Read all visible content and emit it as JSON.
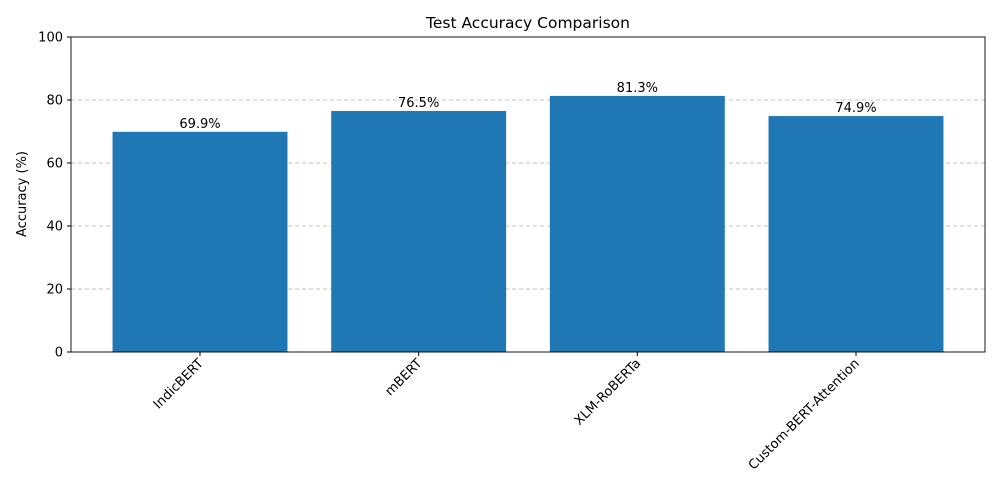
{
  "chart_data": {
    "type": "bar",
    "title": "Test Accuracy Comparison",
    "y_label": "Accuracy (%)",
    "categories": [
      "IndicBERT",
      "mBERT",
      "XLM-RoBERTa",
      "Custom-BERT-Attention"
    ],
    "values": [
      69.9,
      76.5,
      81.3,
      74.9
    ],
    "value_labels": [
      "69.9%",
      "76.5%",
      "81.3%",
      "74.9%"
    ],
    "color": "#1f77b4",
    "ylim": [
      0,
      100
    ],
    "yticks": [
      0,
      20,
      40,
      60,
      80,
      100
    ],
    "grid": true
  }
}
